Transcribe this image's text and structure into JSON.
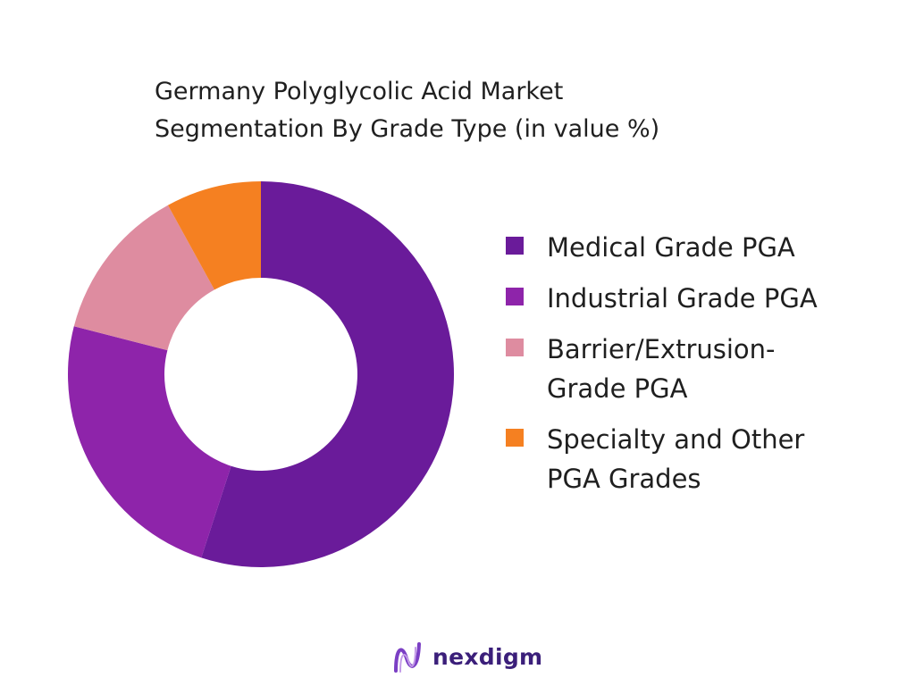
{
  "chart_data": {
    "type": "pie",
    "donut": true,
    "title_lines": [
      "Germany Polyglycolic Acid Market",
      "Segmentation By Grade Type (in value %)"
    ],
    "categories": [
      "Medical Grade PGA",
      "Industrial Grade PGA",
      "Barrier/Extrusion-Grade PGA",
      "Specialty and Other PGA Grades"
    ],
    "values": [
      55,
      24,
      13,
      8
    ],
    "colors": [
      "#6a1b9a",
      "#8e24aa",
      "#de8ca0",
      "#f58021"
    ],
    "legend": {
      "position": "right",
      "items": [
        {
          "label": "Medical Grade PGA",
          "color": "#6a1b9a"
        },
        {
          "label": "Industrial Grade PGA",
          "color": "#8e24aa"
        },
        {
          "label": "Barrier/Extrusion-Grade PGA",
          "color": "#de8ca0"
        },
        {
          "label": "Specialty and Other PGA Grades",
          "color": "#f58021"
        }
      ]
    }
  },
  "brand": {
    "name": "nexdigm",
    "logo_icon": "nexdigm-logo-icon",
    "color": "#3b1f7a"
  }
}
